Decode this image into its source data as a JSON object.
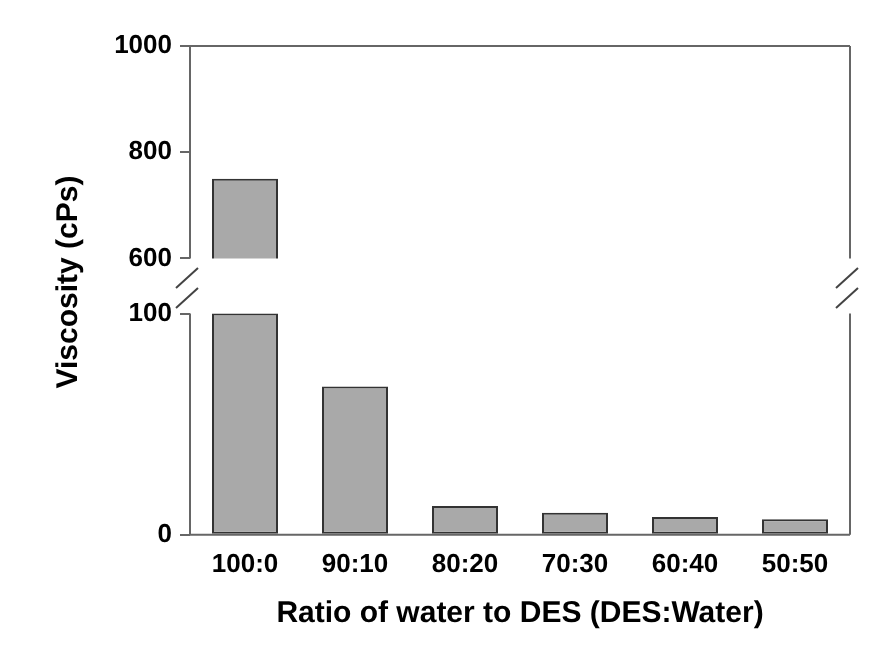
{
  "chart_data": [
    {
      "type": "bar",
      "categories": [
        null,
        null,
        null,
        null,
        null,
        null
      ],
      "values": [
        750,
        null,
        null,
        null,
        null,
        null
      ],
      "color": "#a9a9a9",
      "ylim": [
        600,
        1000
      ],
      "yticks": [
        600,
        800,
        1000
      ],
      "tick_labels": "y"
    },
    {
      "type": "bar",
      "categories": [
        "100:0",
        "90:10",
        "80:20",
        "70:30",
        "60:40",
        "50:50"
      ],
      "values": [
        100,
        67,
        13,
        10,
        8,
        7
      ],
      "color": "#a9a9a9",
      "ylim": [
        0,
        100
      ],
      "yticks": [
        0,
        100
      ],
      "xlabel": "Ratio of water to DES (DES:Water)",
      "ylabel": "Viscosity (cPs)"
    }
  ]
}
